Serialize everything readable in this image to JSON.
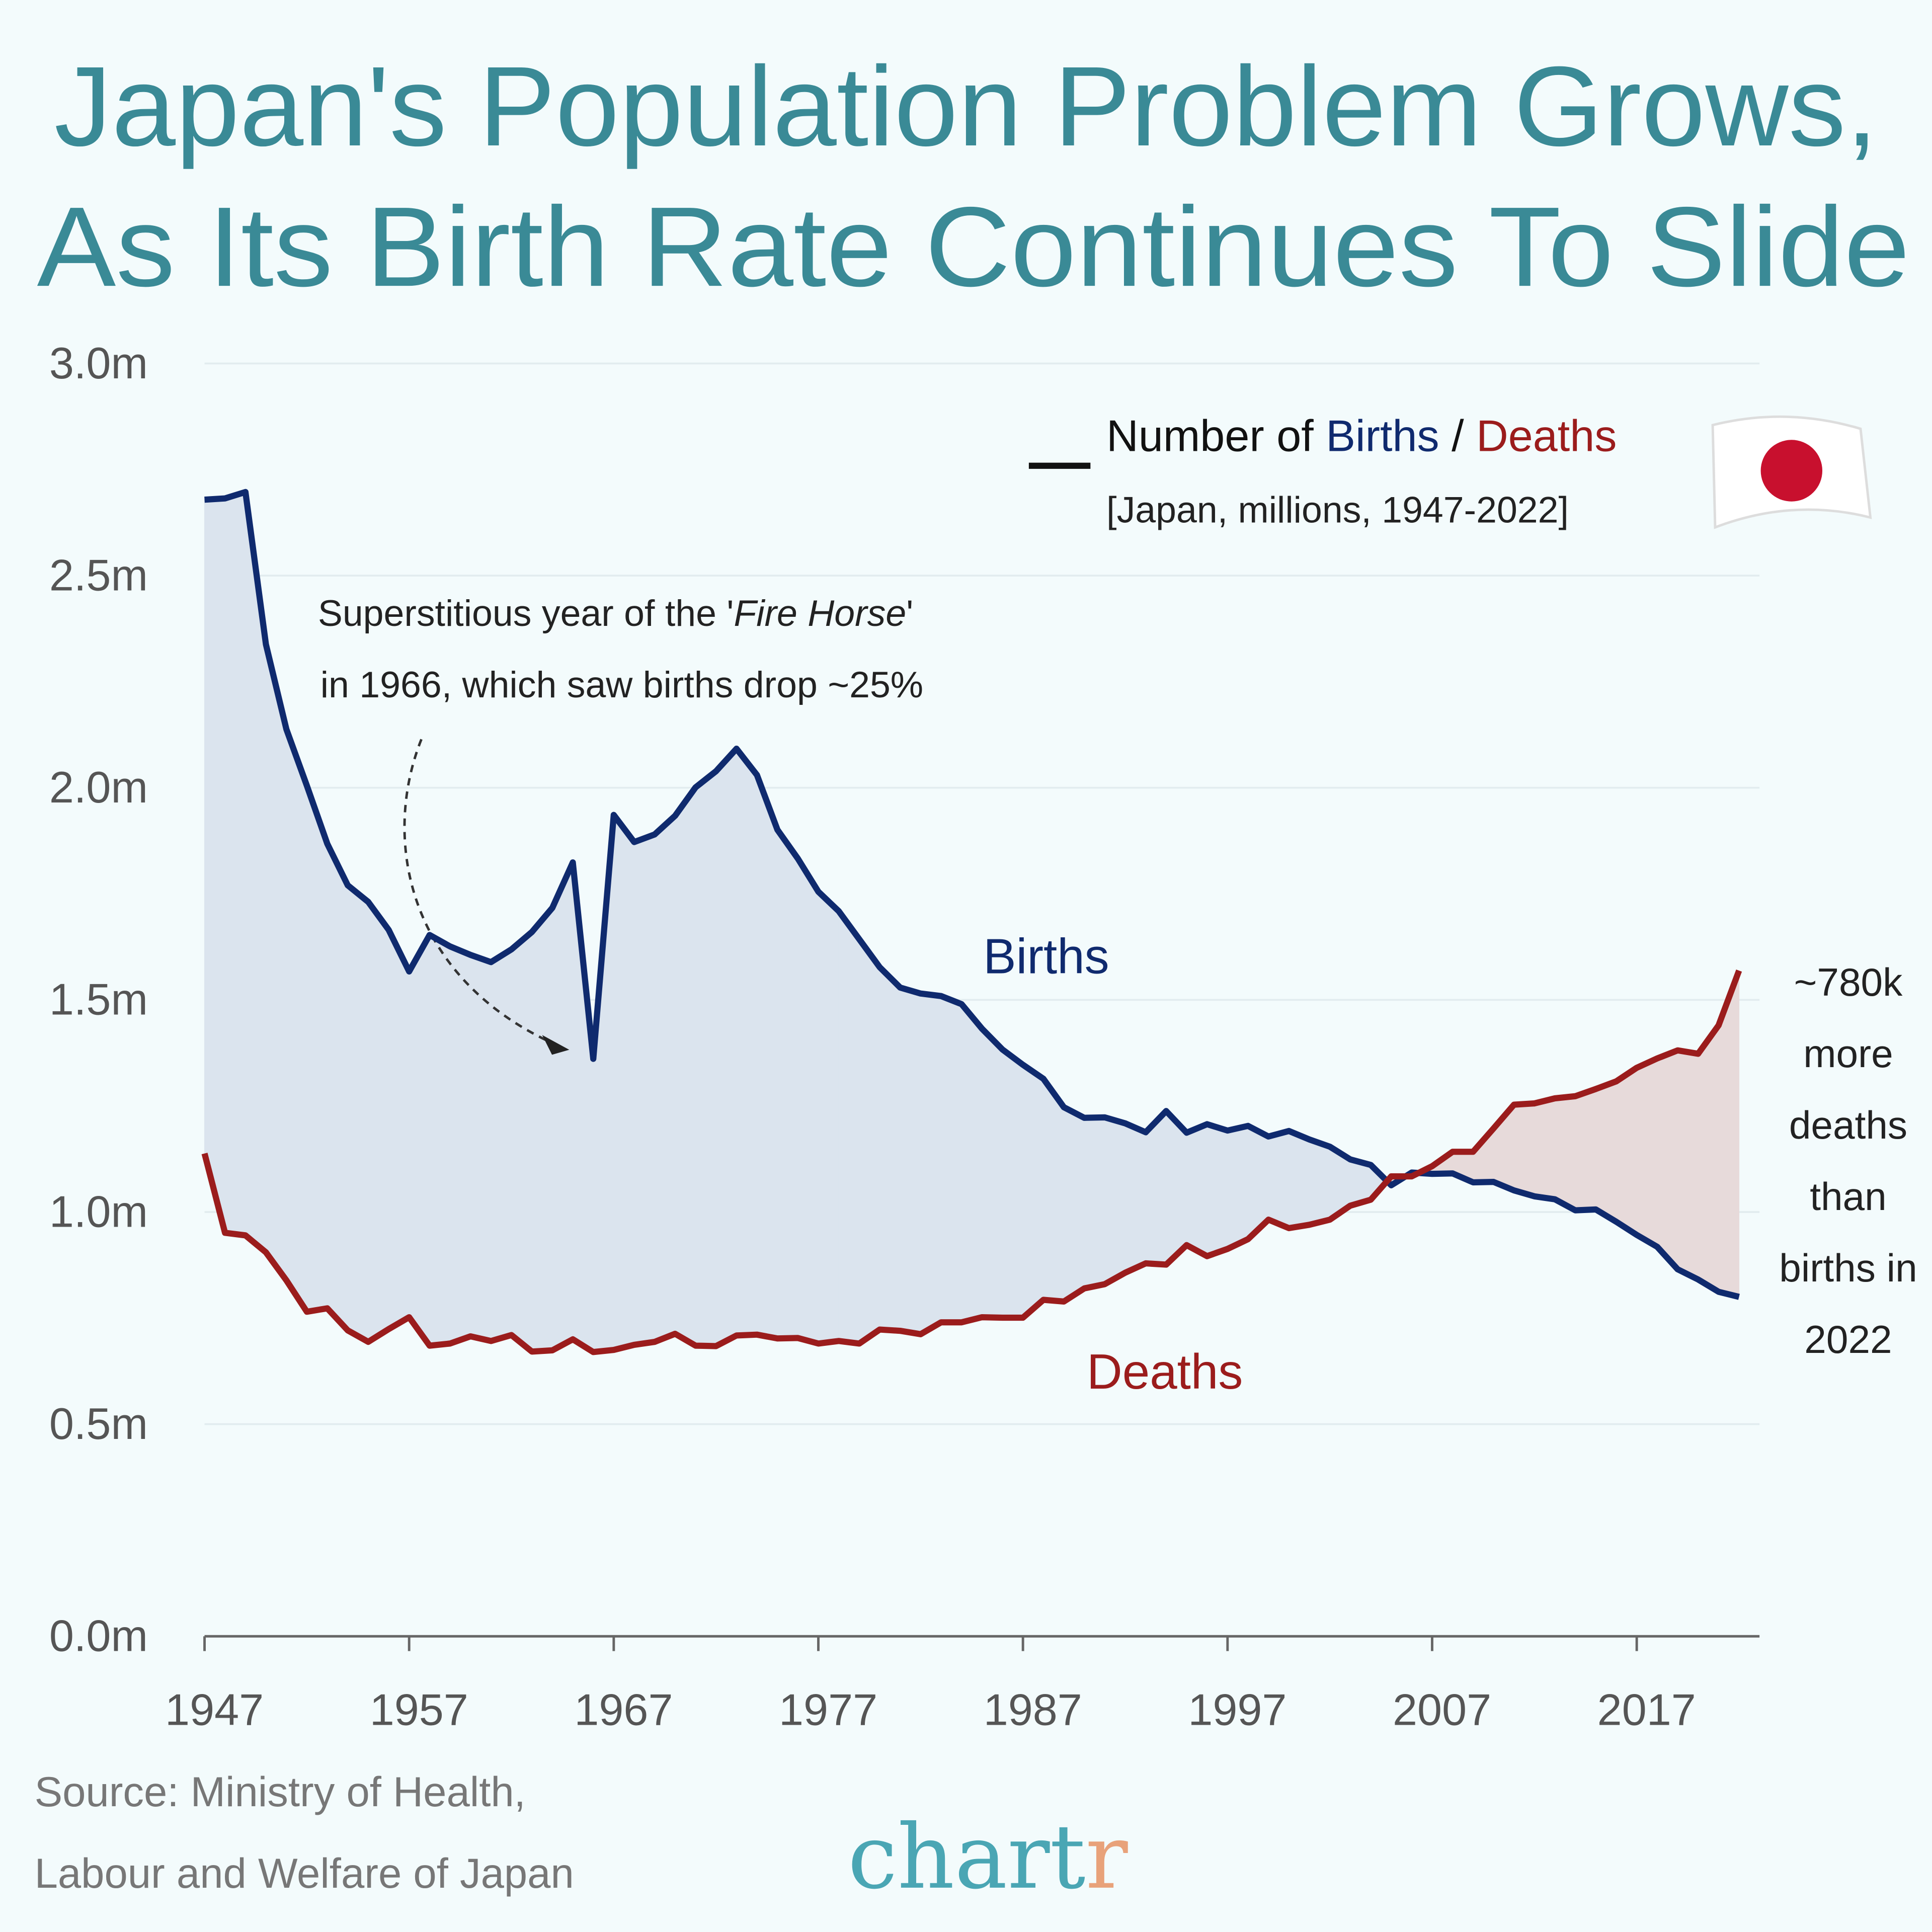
{
  "chart_data": {
    "type": "line",
    "title_lines": [
      "Japan's Population Problem Grows,",
      "As Its Birth Rate Continues To Slide"
    ],
    "legend": {
      "prefix": "Number of",
      "separator": "/",
      "subtitle": "[Japan, millions, 1947-2022]"
    },
    "annotation": {
      "line1": "Superstitious year of the '",
      "italic": "Fire Horse",
      "close": "'",
      "line2": "in 1966, which saw births drop ~25%"
    },
    "side_note_lines": [
      "~780k",
      "more",
      "deaths",
      "than",
      "births in",
      "2022"
    ],
    "source_lines": [
      "Source: Ministry of Health,",
      "Labour and Welfare of Japan"
    ],
    "logo": [
      "chart",
      "r"
    ],
    "x": [
      1947,
      1948,
      1949,
      1950,
      1951,
      1952,
      1953,
      1954,
      1955,
      1956,
      1957,
      1958,
      1959,
      1960,
      1961,
      1962,
      1963,
      1964,
      1965,
      1966,
      1967,
      1968,
      1969,
      1970,
      1971,
      1972,
      1973,
      1974,
      1975,
      1976,
      1977,
      1978,
      1979,
      1980,
      1981,
      1982,
      1983,
      1984,
      1985,
      1986,
      1987,
      1988,
      1989,
      1990,
      1991,
      1992,
      1993,
      1994,
      1995,
      1996,
      1997,
      1998,
      1999,
      2000,
      2001,
      2002,
      2003,
      2004,
      2005,
      2006,
      2007,
      2008,
      2009,
      2010,
      2011,
      2012,
      2013,
      2014,
      2015,
      2016,
      2017,
      2018,
      2019,
      2020,
      2021,
      2022
    ],
    "series": [
      {
        "name": "Births",
        "color": "#0f2a6e",
        "fill": "#dbe4ee",
        "values": [
          2.679,
          2.682,
          2.697,
          2.338,
          2.138,
          2.005,
          1.868,
          1.77,
          1.731,
          1.665,
          1.567,
          1.653,
          1.626,
          1.606,
          1.589,
          1.619,
          1.66,
          1.717,
          1.824,
          1.361,
          1.936,
          1.872,
          1.89,
          1.934,
          2.001,
          2.039,
          2.092,
          2.03,
          1.901,
          1.833,
          1.755,
          1.709,
          1.643,
          1.577,
          1.529,
          1.515,
          1.509,
          1.49,
          1.432,
          1.383,
          1.347,
          1.314,
          1.247,
          1.222,
          1.223,
          1.209,
          1.188,
          1.238,
          1.187,
          1.207,
          1.192,
          1.203,
          1.178,
          1.191,
          1.171,
          1.154,
          1.124,
          1.111,
          1.063,
          1.093,
          1.09,
          1.091,
          1.07,
          1.071,
          1.051,
          1.037,
          1.03,
          1.004,
          1.006,
          0.977,
          0.946,
          0.918,
          0.865,
          0.841,
          0.812,
          0.8
        ]
      },
      {
        "name": "Deaths",
        "color": "#9b1c1c",
        "fill": "#e7dada",
        "values": [
          1.138,
          0.951,
          0.945,
          0.905,
          0.839,
          0.765,
          0.773,
          0.721,
          0.694,
          0.724,
          0.752,
          0.685,
          0.69,
          0.707,
          0.696,
          0.71,
          0.671,
          0.674,
          0.7,
          0.67,
          0.675,
          0.687,
          0.694,
          0.713,
          0.685,
          0.684,
          0.709,
          0.711,
          0.702,
          0.703,
          0.69,
          0.696,
          0.69,
          0.723,
          0.72,
          0.712,
          0.74,
          0.74,
          0.752,
          0.751,
          0.751,
          0.793,
          0.789,
          0.82,
          0.83,
          0.857,
          0.879,
          0.876,
          0.922,
          0.896,
          0.913,
          0.936,
          0.982,
          0.962,
          0.97,
          0.982,
          1.015,
          1.029,
          1.084,
          1.084,
          1.108,
          1.142,
          1.142,
          1.197,
          1.253,
          1.256,
          1.268,
          1.273,
          1.29,
          1.308,
          1.34,
          1.362,
          1.381,
          1.373,
          1.44,
          1.569
        ]
      }
    ],
    "xlim": [
      1947,
      2023
    ],
    "xticks": [
      1947,
      1957,
      1967,
      1977,
      1987,
      1997,
      2007,
      2017
    ],
    "ylim": [
      0,
      3
    ],
    "yticks": [
      {
        "value": 0,
        "label": "0.0m"
      },
      {
        "value": 0.5,
        "label": "0.5m"
      },
      {
        "value": 1,
        "label": "1.0m"
      },
      {
        "value": 1.5,
        "label": "1.5m"
      },
      {
        "value": 2,
        "label": "2.0m"
      },
      {
        "value": 2.5,
        "label": "2.5m"
      },
      {
        "value": 3,
        "label": "3.0m"
      }
    ],
    "grid": true,
    "title_color": "#3a8a96",
    "logo_colors": [
      "#4aa6b4",
      "#e8a27a"
    ]
  }
}
